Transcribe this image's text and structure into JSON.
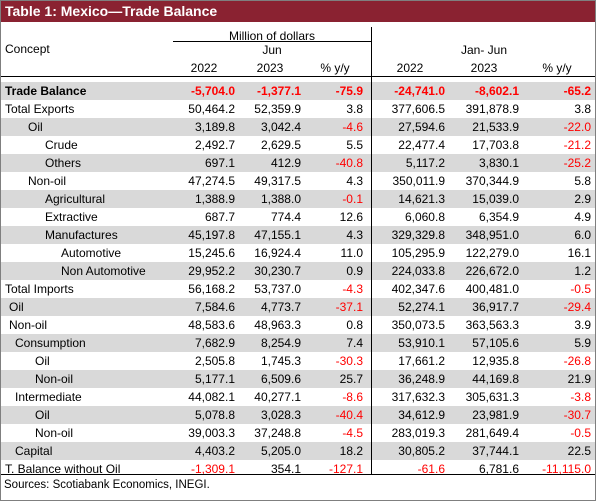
{
  "title": "Table 1: Mexico—Trade Balance",
  "header": {
    "concept": "Concept",
    "unit": "Million of dollars",
    "group1": "Jun",
    "group2": "Jan- Jun",
    "cols": [
      "2022",
      "2023",
      "% y/y",
      "2022",
      "2023",
      "% y/y"
    ]
  },
  "rows": [
    {
      "label": "Trade Balance",
      "indent": 0,
      "bold": true,
      "shaded": true,
      "values": [
        "-5,704.0",
        "-1,377.1",
        "-75.9",
        "-24,741.0",
        "-8,602.1",
        "-65.2"
      ]
    },
    {
      "label": "Total Exports",
      "indent": 0,
      "bold": false,
      "shaded": false,
      "values": [
        "50,464.2",
        "52,359.9",
        "3.8",
        "377,606.5",
        "391,878.9",
        "3.8"
      ]
    },
    {
      "label": "Oil",
      "indent": 1,
      "bold": false,
      "shaded": true,
      "values": [
        "3,189.8",
        "3,042.4",
        "-4.6",
        "27,594.6",
        "21,533.9",
        "-22.0"
      ]
    },
    {
      "label": "Crude",
      "indent": 2,
      "bold": false,
      "shaded": false,
      "values": [
        "2,492.7",
        "2,629.5",
        "5.5",
        "22,477.4",
        "17,703.8",
        "-21.2"
      ]
    },
    {
      "label": "Others",
      "indent": 2,
      "bold": false,
      "shaded": true,
      "values": [
        "697.1",
        "412.9",
        "-40.8",
        "5,117.2",
        "3,830.1",
        "-25.2"
      ]
    },
    {
      "label": "Non-oil",
      "indent": 1,
      "bold": false,
      "shaded": false,
      "values": [
        "47,274.5",
        "49,317.5",
        "4.3",
        "350,011.9",
        "370,344.9",
        "5.8"
      ]
    },
    {
      "label": "Agricultural",
      "indent": 2,
      "bold": false,
      "shaded": true,
      "values": [
        "1,388.9",
        "1,388.0",
        "-0.1",
        "14,621.3",
        "15,039.0",
        "2.9"
      ]
    },
    {
      "label": "Extractive",
      "indent": 2,
      "bold": false,
      "shaded": false,
      "values": [
        "687.7",
        "774.4",
        "12.6",
        "6,060.8",
        "6,354.9",
        "4.9"
      ]
    },
    {
      "label": "Manufactures",
      "indent": 2,
      "bold": false,
      "shaded": true,
      "values": [
        "45,197.8",
        "47,155.1",
        "4.3",
        "329,329.8",
        "348,951.0",
        "6.0"
      ]
    },
    {
      "label": "Automotive",
      "indent": 3,
      "bold": false,
      "shaded": false,
      "values": [
        "15,245.6",
        "16,924.4",
        "11.0",
        "105,295.9",
        "122,279.0",
        "16.1"
      ]
    },
    {
      "label": "Non Automotive",
      "indent": 3,
      "bold": false,
      "shaded": true,
      "values": [
        "29,952.2",
        "30,230.7",
        "0.9",
        "224,033.8",
        "226,672.0",
        "1.2"
      ]
    },
    {
      "label": "Total Imports",
      "indent": 0,
      "bold": false,
      "shaded": false,
      "values": [
        "56,168.2",
        "53,737.0",
        "-4.3",
        "402,347.6",
        "400,481.0",
        "-0.5"
      ]
    },
    {
      "label": "Oil",
      "indent": 4,
      "bold": false,
      "shaded": true,
      "values": [
        "7,584.6",
        "4,773.7",
        "-37.1",
        "52,274.1",
        "36,917.7",
        "-29.4"
      ]
    },
    {
      "label": "Non-oil",
      "indent": 4,
      "bold": false,
      "shaded": false,
      "values": [
        "48,583.6",
        "48,963.3",
        "0.8",
        "350,073.5",
        "363,563.3",
        "3.9"
      ]
    },
    {
      "label": "Consumption",
      "indent": 5,
      "bold": false,
      "shaded": true,
      "values": [
        "7,682.9",
        "8,254.9",
        "7.4",
        "53,910.1",
        "57,105.6",
        "5.9"
      ]
    },
    {
      "label": "Oil",
      "indent": 6,
      "bold": false,
      "shaded": false,
      "values": [
        "2,505.8",
        "1,745.3",
        "-30.3",
        "17,661.2",
        "12,935.8",
        "-26.8"
      ]
    },
    {
      "label": "Non-oil",
      "indent": 6,
      "bold": false,
      "shaded": true,
      "values": [
        "5,177.1",
        "6,509.6",
        "25.7",
        "36,248.9",
        "44,169.8",
        "21.9"
      ]
    },
    {
      "label": "Intermediate",
      "indent": 5,
      "bold": false,
      "shaded": false,
      "values": [
        "44,082.1",
        "40,277.1",
        "-8.6",
        "317,632.3",
        "305,631.3",
        "-3.8"
      ]
    },
    {
      "label": "Oil",
      "indent": 6,
      "bold": false,
      "shaded": true,
      "values": [
        "5,078.8",
        "3,028.3",
        "-40.4",
        "34,612.9",
        "23,981.9",
        "-30.7"
      ]
    },
    {
      "label": "Non-oil",
      "indent": 6,
      "bold": false,
      "shaded": false,
      "values": [
        "39,003.3",
        "37,248.8",
        "-4.5",
        "283,019.3",
        "281,649.4",
        "-0.5"
      ]
    },
    {
      "label": "Capital",
      "indent": 5,
      "bold": false,
      "shaded": true,
      "values": [
        "4,403.2",
        "5,205.0",
        "18.2",
        "30,805.2",
        "37,744.1",
        "22.5"
      ]
    },
    {
      "label": "T. Balance without Oil",
      "indent": 0,
      "bold": false,
      "shaded": false,
      "values": [
        "-1,309.1",
        "354.1",
        "-127.1",
        "-61.6",
        "6,781.6",
        "-11,115.0"
      ]
    }
  ],
  "sources": "Sources: Scotiabank Economics, INEGI.",
  "colors": {
    "title_bg": "#8a2231",
    "title_text": "#ffffff",
    "shade": "#d9d9d9",
    "negative": "#ff0000"
  }
}
